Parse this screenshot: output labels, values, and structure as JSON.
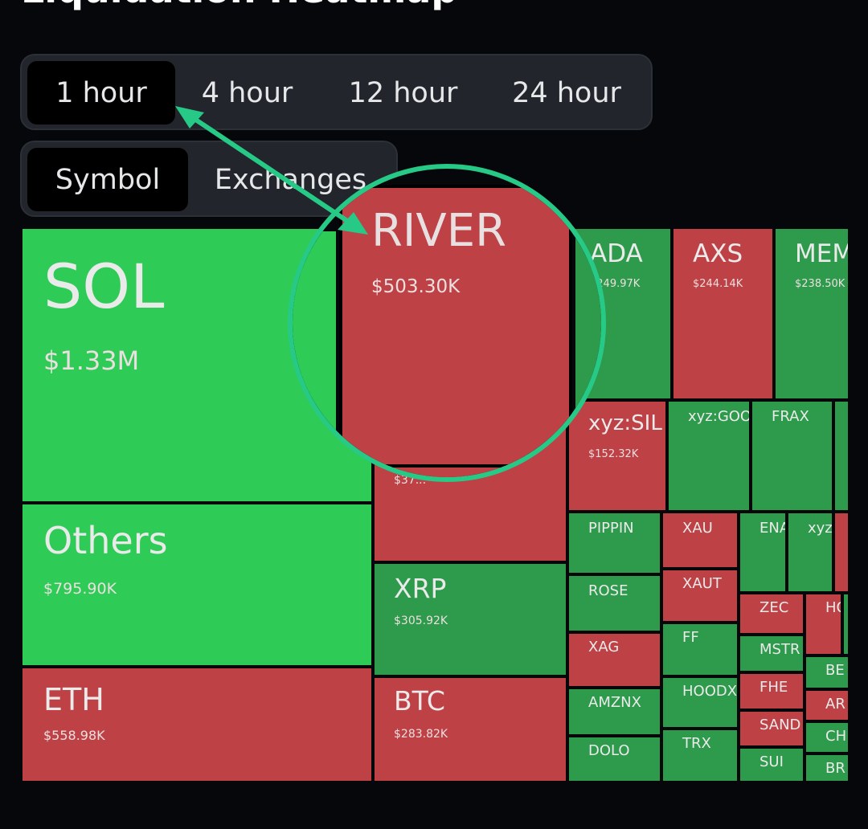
{
  "page": {
    "title": "Liquidation Heatmap"
  },
  "time_filter": {
    "options": [
      "1 hour",
      "4 hour",
      "12 hour",
      "24 hour"
    ],
    "selected": "1 hour"
  },
  "group_filter": {
    "options": [
      "Symbol",
      "Exchanges"
    ],
    "selected": "Symbol"
  },
  "colors": {
    "long_liq_green": "#2fcb57",
    "dark_green": "#2e9a4c",
    "short_liq_red": "#be4146",
    "accent": "#27c987"
  },
  "treemap": {
    "tiles": [
      {
        "name": "SOL",
        "value": "$1.33M",
        "color": "green"
      },
      {
        "name": "Others",
        "value": "$795.90K",
        "color": "green"
      },
      {
        "name": "ETH",
        "value": "$558.98K",
        "color": "red"
      },
      {
        "name": "RIVER",
        "value": "$503.30K",
        "color": "red"
      },
      {
        "name": "XRP",
        "value": "$305.92K",
        "color": "dark-green"
      },
      {
        "name": "BTC",
        "value": "$283.82K",
        "color": "red"
      },
      {
        "name": "ADA",
        "value": "$249.97K",
        "color": "dark-green"
      },
      {
        "name": "AXS",
        "value": "$244.14K",
        "color": "red"
      },
      {
        "name": "MEM",
        "value": "$238.50K",
        "color": "dark-green"
      },
      {
        "name": "xyz:SIL",
        "value": "$152.32K",
        "color": "red"
      },
      {
        "name": "xyz:GOO",
        "color": "dark-green"
      },
      {
        "name": "FRAX",
        "color": "dark-green"
      },
      {
        "name": "PIPPIN",
        "color": "dark-green"
      },
      {
        "name": "XAU",
        "color": "red"
      },
      {
        "name": "ENA",
        "color": "dark-green"
      },
      {
        "name": "xyz",
        "color": "dark-green"
      },
      {
        "name": "ROSE",
        "color": "dark-green"
      },
      {
        "name": "XAUT",
        "color": "red"
      },
      {
        "name": "ZEC",
        "color": "red"
      },
      {
        "name": "HO",
        "color": "red"
      },
      {
        "name": "XAG",
        "color": "red"
      },
      {
        "name": "FF",
        "color": "dark-green"
      },
      {
        "name": "MSTR",
        "color": "dark-green"
      },
      {
        "name": "BE",
        "color": "dark-green"
      },
      {
        "name": "AMZNX",
        "color": "dark-green"
      },
      {
        "name": "HOODX",
        "color": "dark-green"
      },
      {
        "name": "FHE",
        "color": "red"
      },
      {
        "name": "AR",
        "color": "red"
      },
      {
        "name": "SAND",
        "color": "red"
      },
      {
        "name": "CH",
        "color": "dark-green"
      },
      {
        "name": "DOLO",
        "color": "dark-green"
      },
      {
        "name": "TRX",
        "color": "dark-green"
      },
      {
        "name": "SUI",
        "color": "dark-green"
      },
      {
        "name": "BR",
        "color": "dark-green"
      }
    ],
    "partial_value_under_magnifier": "$37..."
  },
  "magnifier": {
    "name": "RIVER",
    "value": "$503.30K"
  }
}
